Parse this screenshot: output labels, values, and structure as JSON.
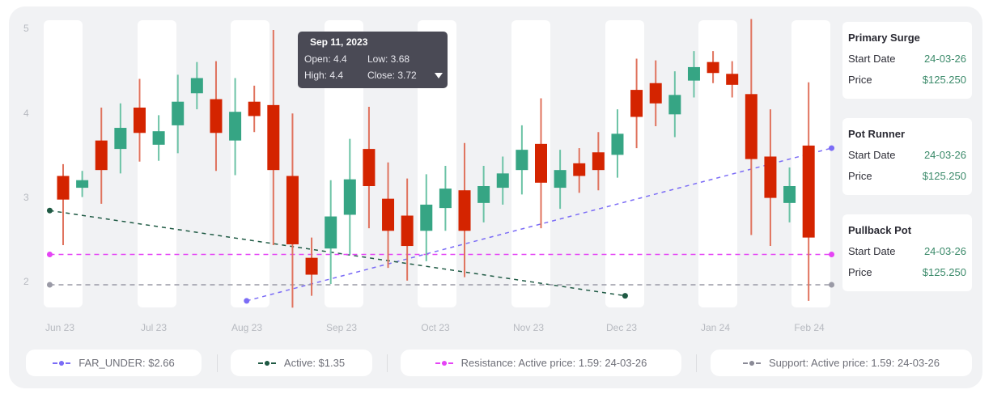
{
  "chart_data": {
    "type": "candlestick",
    "title": "",
    "xlabel": "",
    "ylabel": "",
    "ylim": [
      1.6,
      5.1
    ],
    "y_ticks": [
      5,
      4,
      3,
      2
    ],
    "x_ticks": [
      "Jun 23",
      "Jul 23",
      "Aug 23",
      "Sep 23",
      "Oct 23",
      "Nov 23",
      "Dec 23",
      "Jan 24",
      "Feb 24"
    ],
    "grid": false,
    "candles": [
      {
        "o": 3.26,
        "h": 3.4,
        "l": 2.44,
        "c": 2.98
      },
      {
        "o": 3.12,
        "h": 3.32,
        "l": 3.01,
        "c": 3.21
      },
      {
        "o": 3.68,
        "h": 4.07,
        "l": 2.93,
        "c": 3.33
      },
      {
        "o": 3.58,
        "h": 4.12,
        "l": 3.29,
        "c": 3.83
      },
      {
        "o": 4.07,
        "h": 4.41,
        "l": 3.43,
        "c": 3.77
      },
      {
        "o": 3.63,
        "h": 3.98,
        "l": 3.44,
        "c": 3.79
      },
      {
        "o": 3.86,
        "h": 4.46,
        "l": 3.53,
        "c": 4.14
      },
      {
        "o": 4.24,
        "h": 4.61,
        "l": 4.05,
        "c": 4.42
      },
      {
        "o": 4.17,
        "h": 4.62,
        "l": 3.32,
        "c": 3.77
      },
      {
        "o": 3.68,
        "h": 4.42,
        "l": 3.27,
        "c": 4.02
      },
      {
        "o": 4.14,
        "h": 4.33,
        "l": 3.78,
        "c": 3.97
      },
      {
        "o": 4.1,
        "h": 4.99,
        "l": 2.44,
        "c": 3.33
      },
      {
        "o": 3.26,
        "h": 4.0,
        "l": 1.7,
        "c": 2.45
      },
      {
        "o": 2.29,
        "h": 2.53,
        "l": 1.84,
        "c": 2.09
      },
      {
        "o": 2.4,
        "h": 3.21,
        "l": 1.98,
        "c": 2.78
      },
      {
        "o": 2.8,
        "h": 3.7,
        "l": 2.33,
        "c": 3.22
      },
      {
        "o": 3.58,
        "h": 4.08,
        "l": 2.64,
        "c": 3.14
      },
      {
        "o": 2.99,
        "h": 3.42,
        "l": 2.17,
        "c": 2.61
      },
      {
        "o": 2.79,
        "h": 3.23,
        "l": 2.02,
        "c": 2.43
      },
      {
        "o": 2.61,
        "h": 3.28,
        "l": 2.25,
        "c": 2.92
      },
      {
        "o": 2.88,
        "h": 3.38,
        "l": 2.61,
        "c": 3.11
      },
      {
        "o": 3.09,
        "h": 3.65,
        "l": 2.06,
        "c": 2.61
      },
      {
        "o": 2.94,
        "h": 3.38,
        "l": 2.71,
        "c": 3.14
      },
      {
        "o": 3.12,
        "h": 3.49,
        "l": 2.92,
        "c": 3.29
      },
      {
        "o": 3.33,
        "h": 3.86,
        "l": 3.04,
        "c": 3.57
      },
      {
        "o": 3.64,
        "h": 4.18,
        "l": 2.64,
        "c": 3.18
      },
      {
        "o": 3.12,
        "h": 3.57,
        "l": 2.87,
        "c": 3.33
      },
      {
        "o": 3.41,
        "h": 3.59,
        "l": 3.06,
        "c": 3.26
      },
      {
        "o": 3.54,
        "h": 3.78,
        "l": 3.09,
        "c": 3.33
      },
      {
        "o": 3.51,
        "h": 4.05,
        "l": 3.24,
        "c": 3.76
      },
      {
        "o": 4.28,
        "h": 4.65,
        "l": 3.59,
        "c": 3.96
      },
      {
        "o": 4.36,
        "h": 4.63,
        "l": 3.85,
        "c": 4.12
      },
      {
        "o": 3.99,
        "h": 4.5,
        "l": 3.72,
        "c": 4.22
      },
      {
        "o": 4.39,
        "h": 4.74,
        "l": 4.19,
        "c": 4.55
      },
      {
        "o": 4.61,
        "h": 4.74,
        "l": 4.36,
        "c": 4.48
      },
      {
        "o": 4.47,
        "h": 4.62,
        "l": 4.19,
        "c": 4.34
      },
      {
        "o": 4.23,
        "h": 5.12,
        "l": 2.56,
        "c": 3.46
      },
      {
        "o": 3.49,
        "h": 4.05,
        "l": 2.43,
        "c": 3.0
      },
      {
        "o": 2.94,
        "h": 3.36,
        "l": 2.71,
        "c": 3.14
      },
      {
        "o": 3.62,
        "h": 4.37,
        "l": 1.78,
        "c": 2.53
      }
    ],
    "lines": [
      {
        "name": "FAR_UNDER",
        "color": "#7b6cf6",
        "x": [
          9.6,
          40.2
        ],
        "y": [
          1.78,
          3.59
        ],
        "dash": "5,5"
      },
      {
        "name": "Active",
        "color": "#1f5a44",
        "x": [
          -0.7,
          29.4
        ],
        "y": [
          2.85,
          1.84
        ],
        "dash": "5,5"
      },
      {
        "name": "Resistance",
        "color": "#e544f5",
        "x": [
          -0.7,
          40.2
        ],
        "y": [
          2.33,
          2.33
        ],
        "dash": "6,5"
      },
      {
        "name": "Support",
        "color": "#9a9aa6",
        "x": [
          -0.7,
          40.2
        ],
        "y": [
          1.97,
          1.97
        ],
        "dash": "6,5"
      }
    ],
    "colors": {
      "up": "#36a584",
      "down": "#d42400",
      "up_wick": "#6cc3a6",
      "down_wick": "#e0735e"
    },
    "tooltip": {
      "date": "Sep 11, 2023",
      "open": 4.4,
      "high": 4.4,
      "low": 3.68,
      "close": 3.72
    },
    "legend_position": "bottom"
  },
  "axis": {
    "y": [
      "5",
      "4",
      "3",
      "2"
    ],
    "x": [
      "Jun 23",
      "Jul 23",
      "Aug 23",
      "Sep 23",
      "Oct 23",
      "Nov 23",
      "Dec 23",
      "Jan 24",
      "Feb 24"
    ]
  },
  "tooltip": {
    "title": "Sep 11, 2023",
    "open": "Open: 4.4",
    "low": "Low: 3.68",
    "high": "High: 4.4",
    "close": "Close: 3.72"
  },
  "cards": [
    {
      "title": "Primary Surge",
      "start_label": "Start Date",
      "start_value": "24-03-26",
      "price_label": "Price",
      "price_value": "$125.250"
    },
    {
      "title": "Pot Runner",
      "start_label": "Start Date",
      "start_value": "24-03-26",
      "price_label": "Price",
      "price_value": "$125.250"
    },
    {
      "title": "Pullback Pot",
      "start_label": "Start Date",
      "start_value": "24-03-26",
      "price_label": "Price",
      "price_value": "$125.250"
    }
  ],
  "legend": [
    {
      "label": "FAR_UNDER: $2.66",
      "color": "#7b6cf6"
    },
    {
      "label": "Active: $1.35",
      "color": "#1f5a44"
    },
    {
      "label": "Resistance: Active price: 1.59: 24-03-26",
      "color": "#e544f5"
    },
    {
      "label": "Support: Active price: 1.59: 24-03-26",
      "color": "#8a8a96"
    }
  ]
}
